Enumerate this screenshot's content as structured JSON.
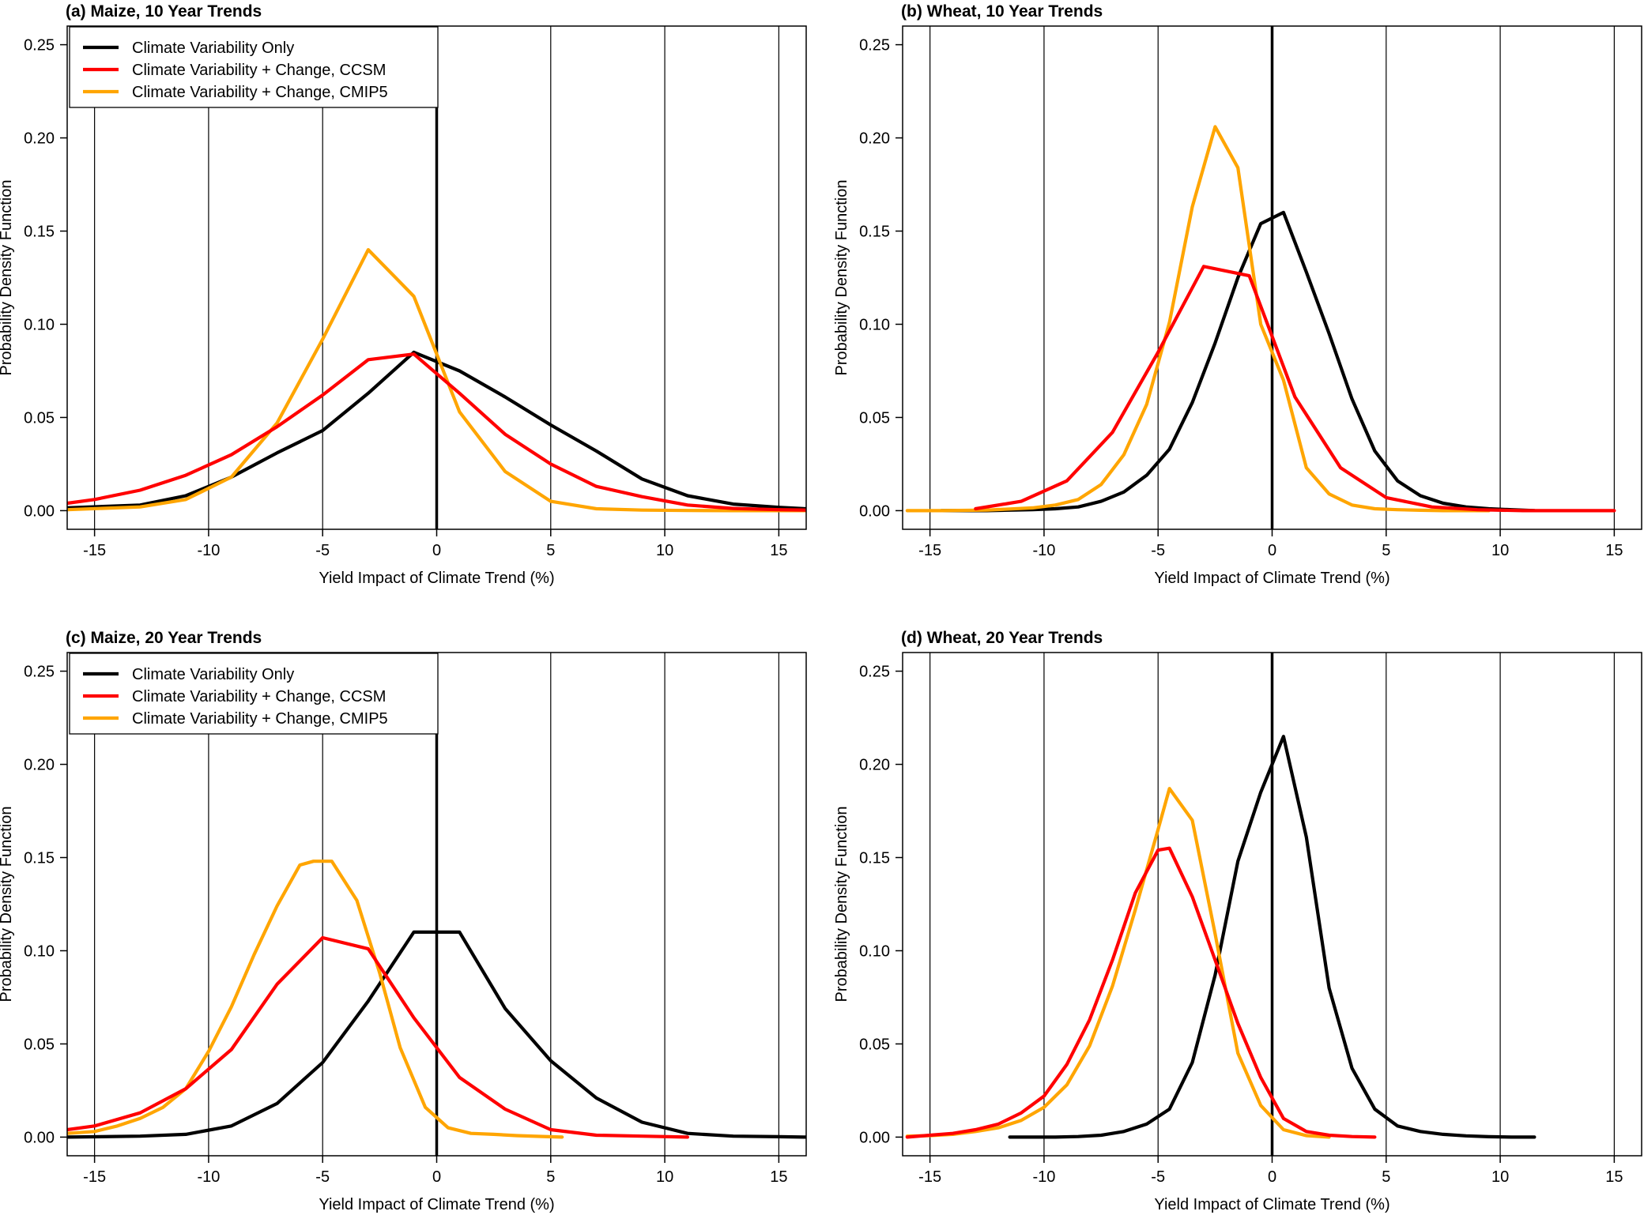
{
  "chart_data": [
    {
      "type": "line",
      "title": "(a) Maize, 10 Year Trends",
      "xlabel": "Yield Impact of Climate Trend (%)",
      "ylabel": "Probability Density Function",
      "xlim": [
        -16.2,
        16.2
      ],
      "ylim": [
        -0.01,
        0.26
      ],
      "xticks": [
        -15,
        -10,
        -5,
        0,
        5,
        10,
        15
      ],
      "yticks": [
        0.0,
        0.05,
        0.1,
        0.15,
        0.2,
        0.25
      ],
      "grid": "vertical lines at x ticks; bold line at x = 0",
      "legend": {
        "position": "top-left",
        "entries": [
          "Climate Variability Only",
          "Climate Variability + Change, CCSM",
          "Climate Variability + Change, CMIP5"
        ]
      },
      "series": [
        {
          "name": "Climate Variability Only",
          "color": "#000000",
          "x": [
            -16.2,
            -13,
            -11,
            -9,
            -7,
            -5,
            -3,
            -1,
            1,
            3,
            5,
            7,
            9,
            11,
            13,
            15,
            16.2
          ],
          "y": [
            0.0015,
            0.003,
            0.008,
            0.018,
            0.031,
            0.043,
            0.063,
            0.085,
            0.075,
            0.061,
            0.046,
            0.032,
            0.017,
            0.008,
            0.0035,
            0.0018,
            0.001
          ]
        },
        {
          "name": "Climate Variability + Change, CCSM",
          "color": "#ff0000",
          "x": [
            -16.2,
            -15,
            -13,
            -11,
            -9,
            -7,
            -5,
            -3,
            -1,
            1,
            3,
            5,
            7,
            9,
            11,
            13,
            15,
            16.2
          ],
          "y": [
            0.004,
            0.006,
            0.011,
            0.019,
            0.03,
            0.045,
            0.062,
            0.081,
            0.084,
            0.063,
            0.041,
            0.025,
            0.013,
            0.0075,
            0.003,
            0.0012,
            0.0005,
            0.0003
          ]
        },
        {
          "name": "Climate Variability + Change, CMIP5",
          "color": "#ffa500",
          "x": [
            -16.2,
            -13,
            -11,
            -9,
            -7,
            -5,
            -3,
            -1,
            1,
            3,
            5,
            7,
            9,
            11,
            13,
            15,
            16.2
          ],
          "y": [
            0.0005,
            0.002,
            0.006,
            0.018,
            0.047,
            0.092,
            0.14,
            0.115,
            0.053,
            0.021,
            0.005,
            0.001,
            0.0003,
            0.0001,
            0.0,
            0.0,
            0.0
          ]
        }
      ]
    },
    {
      "type": "line",
      "title": "(b) Wheat, 10 Year Trends",
      "xlabel": "Yield Impact of Climate Trend (%)",
      "ylabel": "Probability Density Function",
      "xlim": [
        -16.2,
        16.2
      ],
      "ylim": [
        -0.01,
        0.26
      ],
      "xticks": [
        -15,
        -10,
        -5,
        0,
        5,
        10,
        15
      ],
      "yticks": [
        0.0,
        0.05,
        0.1,
        0.15,
        0.2,
        0.25
      ],
      "grid": "vertical lines at x ticks; bold line at x = 0",
      "series": [
        {
          "name": "Climate Variability Only",
          "color": "#000000",
          "x": [
            -14.5,
            -12.5,
            -10.5,
            -9.5,
            -8.5,
            -7.5,
            -6.5,
            -5.5,
            -4.5,
            -3.5,
            -2.5,
            -1.5,
            -0.5,
            0.5,
            1.5,
            2.5,
            3.5,
            4.5,
            5.5,
            6.5,
            7.5,
            8.5,
            9.5,
            10.5,
            11.5
          ],
          "y": [
            0.0,
            0.0,
            0.0005,
            0.001,
            0.002,
            0.005,
            0.01,
            0.019,
            0.033,
            0.058,
            0.09,
            0.125,
            0.154,
            0.16,
            0.128,
            0.095,
            0.06,
            0.032,
            0.016,
            0.008,
            0.004,
            0.002,
            0.001,
            0.0005,
            0.0
          ]
        },
        {
          "name": "Climate Variability + Change, CCSM",
          "color": "#ff0000",
          "x": [
            -13,
            -11,
            -9,
            -7,
            -5,
            -3,
            -1,
            1,
            3,
            5,
            7,
            9,
            11,
            13,
            15
          ],
          "y": [
            0.001,
            0.005,
            0.016,
            0.042,
            0.085,
            0.131,
            0.126,
            0.061,
            0.023,
            0.007,
            0.002,
            0.0005,
            0.0,
            0.0,
            0.0
          ]
        },
        {
          "name": "Climate Variability + Change, CMIP5",
          "color": "#ffa500",
          "x": [
            -16,
            -14.5,
            -12.5,
            -10.5,
            -9.5,
            -8.5,
            -7.5,
            -6.5,
            -5.5,
            -4.5,
            -3.5,
            -2.5,
            -1.5,
            -0.5,
            0.5,
            1.5,
            2.5,
            3.5,
            4.5,
            5.5,
            6.5,
            7.5,
            8.5,
            9.5
          ],
          "y": [
            0.0,
            0.0,
            0.0003,
            0.0015,
            0.003,
            0.006,
            0.014,
            0.03,
            0.057,
            0.101,
            0.163,
            0.206,
            0.184,
            0.1,
            0.07,
            0.023,
            0.009,
            0.003,
            0.001,
            0.0005,
            0.0002,
            0.0,
            0.0,
            0.0
          ]
        }
      ]
    },
    {
      "type": "line",
      "title": "(c) Maize, 20 Year Trends",
      "xlabel": "Yield Impact of Climate Trend (%)",
      "ylabel": "Probability Density Function",
      "xlim": [
        -16.2,
        16.2
      ],
      "ylim": [
        -0.01,
        0.26
      ],
      "xticks": [
        -15,
        -10,
        -5,
        0,
        5,
        10,
        15
      ],
      "yticks": [
        0.0,
        0.05,
        0.1,
        0.15,
        0.2,
        0.25
      ],
      "grid": "vertical lines at x ticks; bold line at x = 0",
      "legend": {
        "position": "top-left",
        "entries": [
          "Climate Variability Only",
          "Climate Variability + Change, CCSM",
          "Climate Variability + Change, CMIP5"
        ]
      },
      "series": [
        {
          "name": "Climate Variability Only",
          "color": "#000000",
          "x": [
            -16.2,
            -13,
            -11,
            -9,
            -7,
            -5,
            -3,
            -1,
            1,
            3,
            5,
            7,
            9,
            11,
            13,
            15,
            16.2
          ],
          "y": [
            0.0,
            0.0005,
            0.0015,
            0.006,
            0.018,
            0.04,
            0.073,
            0.11,
            0.11,
            0.069,
            0.041,
            0.021,
            0.008,
            0.002,
            0.0005,
            0.0002,
            0.0
          ]
        },
        {
          "name": "Climate Variability + Change, CCSM",
          "color": "#ff0000",
          "x": [
            -16.2,
            -15,
            -13,
            -11,
            -9,
            -7,
            -5,
            -3,
            -1,
            1,
            3,
            5,
            7,
            9,
            11
          ],
          "y": [
            0.004,
            0.006,
            0.013,
            0.026,
            0.047,
            0.082,
            0.107,
            0.101,
            0.064,
            0.032,
            0.015,
            0.004,
            0.001,
            0.0005,
            0.0
          ]
        },
        {
          "name": "Climate Variability + Change, CMIP5",
          "color": "#ffa500",
          "x": [
            -16.2,
            -15,
            -14,
            -13,
            -12,
            -11,
            -10,
            -9,
            -8,
            -7,
            -6,
            -5.4,
            -4.6,
            -3.5,
            -2.5,
            -1.6,
            -0.5,
            0.5,
            1.5,
            2.5,
            3.5,
            4.5,
            5.5
          ],
          "y": [
            0.002,
            0.003,
            0.006,
            0.01,
            0.016,
            0.026,
            0.046,
            0.07,
            0.098,
            0.124,
            0.146,
            0.148,
            0.148,
            0.127,
            0.088,
            0.048,
            0.016,
            0.005,
            0.002,
            0.0015,
            0.0008,
            0.0004,
            0.0
          ]
        }
      ]
    },
    {
      "type": "line",
      "title": "(d) Wheat, 20 Year Trends",
      "xlabel": "Yield Impact of Climate Trend (%)",
      "ylabel": "Probability Density Function",
      "xlim": [
        -16.2,
        16.2
      ],
      "ylim": [
        -0.01,
        0.26
      ],
      "xticks": [
        -15,
        -10,
        -5,
        0,
        5,
        10,
        15
      ],
      "yticks": [
        0.0,
        0.05,
        0.1,
        0.15,
        0.2,
        0.25
      ],
      "grid": "vertical lines at x ticks; bold line at x = 0",
      "series": [
        {
          "name": "Climate Variability Only",
          "color": "#000000",
          "x": [
            -11.5,
            -10.5,
            -9.5,
            -8.5,
            -7.5,
            -6.5,
            -5.5,
            -4.5,
            -3.5,
            -2.5,
            -1.5,
            -0.5,
            0.5,
            1.5,
            2.5,
            3.5,
            4.5,
            5.5,
            6.5,
            7.5,
            8.5,
            9.5,
            10.5,
            11.5
          ],
          "y": [
            0.0,
            0.0,
            0.0,
            0.0003,
            0.001,
            0.003,
            0.007,
            0.015,
            0.04,
            0.087,
            0.148,
            0.185,
            0.215,
            0.161,
            0.08,
            0.037,
            0.015,
            0.006,
            0.003,
            0.0015,
            0.0007,
            0.0002,
            0.0,
            0.0
          ]
        },
        {
          "name": "Climate Variability + Change, CCSM",
          "color": "#ff0000",
          "x": [
            -16,
            -15,
            -14,
            -13,
            -12,
            -11,
            -10,
            -9,
            -8,
            -7,
            -6,
            -5,
            -4.5,
            -3.5,
            -2.5,
            -1.5,
            -0.5,
            0.5,
            1.5,
            2.5,
            3.5,
            4.5
          ],
          "y": [
            0.0,
            0.001,
            0.002,
            0.004,
            0.007,
            0.013,
            0.022,
            0.039,
            0.063,
            0.095,
            0.131,
            0.154,
            0.155,
            0.129,
            0.095,
            0.061,
            0.032,
            0.01,
            0.003,
            0.001,
            0.0003,
            0.0
          ]
        },
        {
          "name": "Climate Variability + Change, CMIP5",
          "color": "#ffa500",
          "x": [
            -16,
            -15,
            -14,
            -13,
            -12,
            -11,
            -10,
            -9,
            -8,
            -7,
            -6,
            -5,
            -4.5,
            -3.5,
            -2.5,
            -1.5,
            -0.5,
            0.5,
            1.5,
            2.5
          ],
          "y": [
            0.0005,
            0.0008,
            0.0015,
            0.003,
            0.005,
            0.009,
            0.016,
            0.028,
            0.049,
            0.081,
            0.122,
            0.165,
            0.187,
            0.17,
            0.109,
            0.045,
            0.017,
            0.004,
            0.0008,
            0.0
          ]
        }
      ]
    }
  ]
}
